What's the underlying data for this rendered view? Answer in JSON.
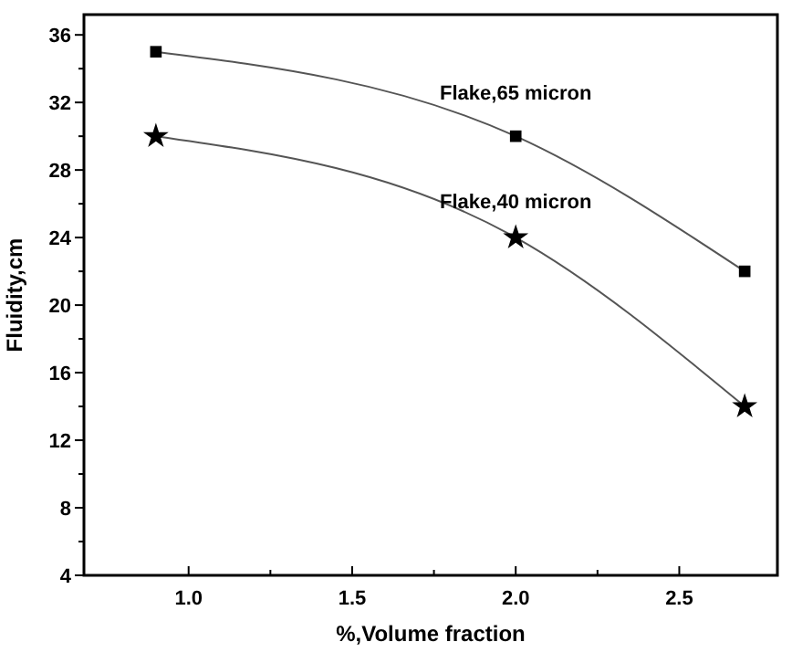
{
  "chart_data": {
    "type": "line",
    "xlabel": "%,Volume fraction",
    "ylabel": "Fluidity,cm",
    "x": [
      0.9,
      2.0,
      2.7
    ],
    "series": [
      {
        "name": "Flake,65 micron",
        "color": "#000000",
        "values": [
          35,
          30,
          22
        ],
        "marker": "square"
      },
      {
        "name": "Flake,40 micron",
        "color": "#000000",
        "values": [
          30,
          24,
          14
        ],
        "marker": "star"
      }
    ],
    "xlim": [
      0.68,
      2.8
    ],
    "xticks": [
      {
        "value": 1,
        "label": "1.0"
      },
      1.5,
      {
        "value": 2,
        "label": "2.0"
      },
      2.5
    ],
    "ylim": [
      4,
      37.2
    ],
    "yticks": [
      4,
      8,
      12,
      16,
      20,
      24,
      28,
      32,
      36
    ],
    "grid": false
  }
}
